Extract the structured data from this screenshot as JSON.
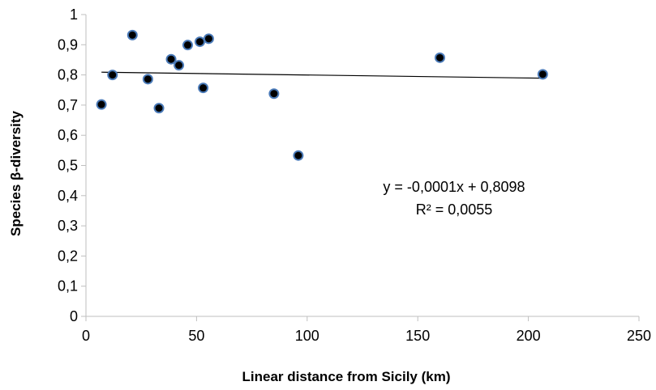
{
  "chart_data": {
    "type": "scatter",
    "title": "",
    "xlabel": "Linear distance from Sicily (km)",
    "ylabel": "Species β-diversity",
    "xlim": [
      0,
      250
    ],
    "ylim": [
      0,
      1
    ],
    "x_ticks": [
      0,
      50,
      100,
      150,
      200,
      250
    ],
    "y_ticks": [
      0,
      0.1,
      0.2,
      0.3,
      0.4,
      0.5,
      0.6,
      0.7,
      0.8,
      0.9,
      1
    ],
    "x_tick_labels": [
      "0",
      "50",
      "100",
      "150",
      "200",
      "250"
    ],
    "y_tick_labels": [
      "0",
      "0,1",
      "0,2",
      "0,3",
      "0,4",
      "0,5",
      "0,6",
      "0,7",
      "0,8",
      "0,9",
      "1"
    ],
    "grid": false,
    "legend": "none",
    "marker_fill": "#000000",
    "marker_edge": "#4a7ab8",
    "trendline_color": "#000000",
    "points": [
      {
        "x": 7,
        "y": 0.702
      },
      {
        "x": 12,
        "y": 0.8
      },
      {
        "x": 21,
        "y": 0.932
      },
      {
        "x": 28,
        "y": 0.786
      },
      {
        "x": 33,
        "y": 0.69
      },
      {
        "x": 38.5,
        "y": 0.852
      },
      {
        "x": 42,
        "y": 0.832
      },
      {
        "x": 46,
        "y": 0.899
      },
      {
        "x": 51.5,
        "y": 0.91
      },
      {
        "x": 53,
        "y": 0.757
      },
      {
        "x": 55.5,
        "y": 0.92
      },
      {
        "x": 85,
        "y": 0.738
      },
      {
        "x": 96,
        "y": 0.533
      },
      {
        "x": 160,
        "y": 0.857
      },
      {
        "x": 206.5,
        "y": 0.802
      }
    ],
    "trendline": {
      "slope": -0.0001,
      "intercept": 0.8098,
      "x_range": [
        7,
        206.5
      ]
    },
    "annotations": [
      "y = -0,0001x + 0,8098",
      "R² = 0,0055"
    ]
  }
}
